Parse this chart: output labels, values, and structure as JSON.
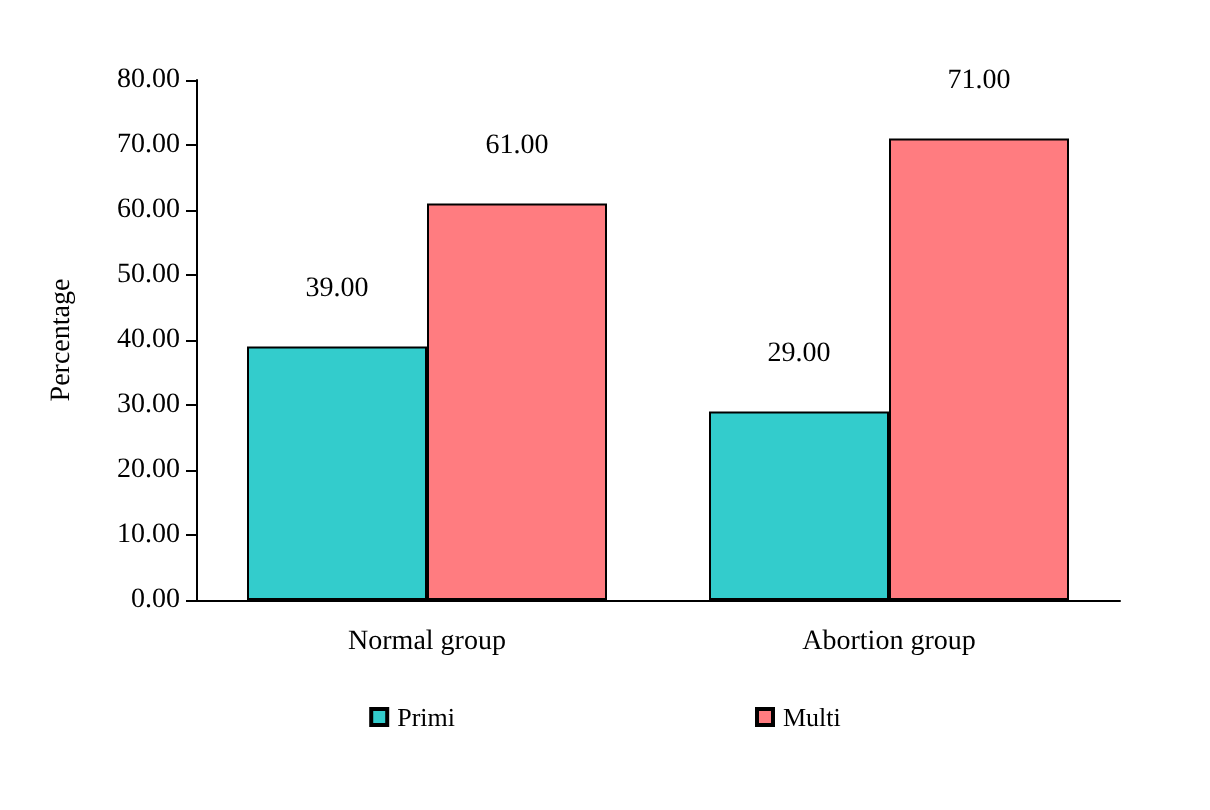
{
  "chart_data": {
    "type": "bar",
    "ylabel": "Percentage",
    "categories": [
      "Normal group",
      "Abortion group"
    ],
    "series": [
      {
        "name": "Primi",
        "color": "#33cccc",
        "values": [
          39,
          29
        ],
        "value_labels": [
          "39.00",
          "29.00"
        ]
      },
      {
        "name": "Multi",
        "color": "#ff7c80",
        "values": [
          61,
          71
        ],
        "value_labels": [
          "61.00",
          "71.00"
        ]
      }
    ],
    "ylim": [
      0,
      80
    ],
    "yticks": [
      {
        "value": 0,
        "label": "0.00"
      },
      {
        "value": 10,
        "label": "10.00"
      },
      {
        "value": 20,
        "label": "20.00"
      },
      {
        "value": 30,
        "label": "30.00"
      },
      {
        "value": 40,
        "label": "40.00"
      },
      {
        "value": 50,
        "label": "50.00"
      },
      {
        "value": 60,
        "label": "60.00"
      },
      {
        "value": 70,
        "label": "70.00"
      },
      {
        "value": 80,
        "label": "80.00"
      }
    ],
    "grid": false,
    "legend": "bottom"
  }
}
